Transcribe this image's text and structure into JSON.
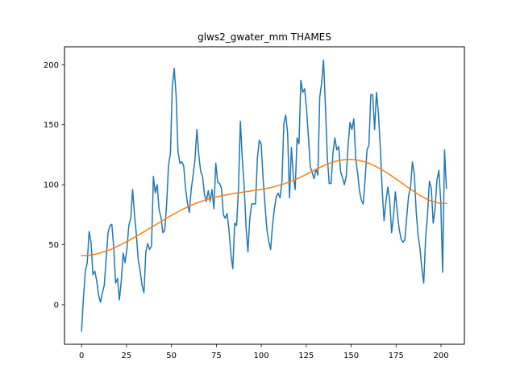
{
  "chart_data": {
    "type": "line",
    "title": "glws2_gwater_mm THAMES",
    "xlabel": "",
    "ylabel": "",
    "xlim": [
      -9.5,
      213
    ],
    "ylim": [
      -33,
      215
    ],
    "grid": false,
    "x_ticks": [
      0,
      25,
      50,
      75,
      100,
      125,
      150,
      175,
      200
    ],
    "y_ticks": [
      0,
      50,
      100,
      150,
      200
    ],
    "colors": {
      "series1": "#1f77b4",
      "series2": "#ff7f0e"
    },
    "series": [
      {
        "values": [
          -22,
          6,
          28,
          35,
          61,
          52,
          25,
          28,
          20,
          8,
          2,
          10,
          16,
          38,
          60,
          66,
          67,
          48,
          18,
          22,
          4,
          20,
          43,
          35,
          47,
          66,
          72,
          96,
          75,
          58,
          37,
          28,
          16,
          10,
          44,
          51,
          46,
          49,
          107,
          93,
          100,
          79,
          73,
          60,
          62,
          84,
          116,
          126,
          182,
          197,
          175,
          128,
          118,
          119,
          116,
          97,
          85,
          77,
          96,
          108,
          121,
          146,
          125,
          111,
          107,
          92,
          86,
          95,
          86,
          96,
          80,
          118,
          102,
          101,
          97,
          75,
          72,
          76,
          62,
          42,
          30,
          68,
          66,
          97,
          153,
          122,
          99,
          65,
          44,
          72,
          84,
          84,
          84,
          122,
          137,
          134,
          106,
          84,
          63,
          53,
          46,
          66,
          80,
          90,
          93,
          89,
          103,
          151,
          158,
          143,
          89,
          131,
          107,
          96,
          139,
          134,
          187,
          177,
          180,
          163,
          140,
          115,
          110,
          105,
          113,
          108,
          173,
          185,
          204,
          165,
          123,
          101,
          101,
          127,
          139,
          129,
          132,
          111,
          106,
          100,
          107,
          133,
          152,
          146,
          155,
          122,
          110,
          95,
          87,
          84,
          105,
          129,
          133,
          175,
          175,
          146,
          177,
          160,
          132,
          96,
          70,
          86,
          98,
          87,
          60,
          74,
          94,
          77,
          63,
          55,
          52,
          54,
          73,
          91,
          97,
          119,
          109,
          78,
          58,
          47,
          30,
          18,
          56,
          75,
          103,
          97,
          68,
          80,
          104,
          112,
          86,
          27,
          129,
          97
        ]
      },
      {
        "values": [
          41,
          41,
          41,
          41.5,
          42,
          42.6,
          43.4,
          44.3,
          45.2,
          46.3,
          47.5,
          48.8,
          50.1,
          51.5,
          53,
          54.5,
          56,
          57.6,
          59.2,
          60.8,
          62.5,
          64.1,
          65.8,
          67.4,
          69.1,
          70.7,
          72.3,
          73.9,
          75.4,
          76.9,
          78.4,
          79.8,
          81.1,
          82.4,
          83.6,
          84.7,
          85.7,
          86.7,
          87.6,
          88.4,
          89.1,
          89.8,
          90.4,
          91,
          91.5,
          92,
          92.5,
          93,
          93.4,
          93.8,
          94.2,
          94.6,
          95,
          95.4,
          95.8,
          96.2,
          96.7,
          97.3,
          97.9,
          98.6,
          99.4,
          100.2,
          101.1,
          102.1,
          103.2,
          104.3,
          105.5,
          106.8,
          108.1,
          109.5,
          110.9,
          112.3,
          113.7,
          115,
          116.3,
          117.4,
          118.4,
          119.3,
          120,
          120.6,
          120.9,
          121.1,
          121.1,
          120.9,
          120.5,
          119.9,
          119.2,
          118.3,
          117.2,
          116,
          114.6,
          113.1,
          111.5,
          109.8,
          108,
          106.1,
          104.2,
          102.3,
          100.3,
          98.3,
          96.4,
          94.5,
          92.7,
          91,
          89.5,
          88.1,
          86.9,
          85.9,
          85.1,
          84.6,
          84.4,
          84.5
        ]
      }
    ]
  }
}
